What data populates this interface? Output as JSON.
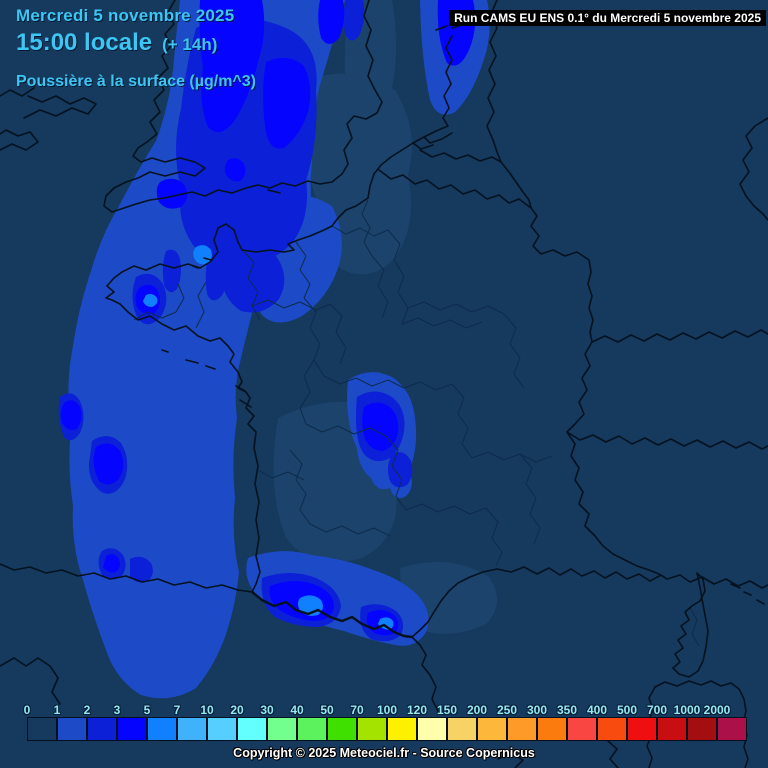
{
  "title": {
    "date": "Mercredi 5 novembre 2025",
    "time": "15:00 locale",
    "utc_offset": "(+ 14h)",
    "parameter": "Poussière à la surface (µg/m^3)",
    "text_color": "#3CC6F4"
  },
  "run_banner": {
    "text": "Run CAMS EU ENS 0.1° du Mercredi 5 novembre 2025",
    "background": "#000000",
    "text_color": "#FFFFFF"
  },
  "colorbar": {
    "unit": "µg/m^3",
    "tick_labels": [
      "0",
      "1",
      "2",
      "3",
      "5",
      "7",
      "10",
      "20",
      "30",
      "40",
      "50",
      "70",
      "100",
      "120",
      "150",
      "200",
      "250",
      "300",
      "350",
      "400",
      "500",
      "700",
      "1000",
      "2000"
    ],
    "cell_colors": [
      "#16395E",
      "#1D4BC7",
      "#0C20D8",
      "#0505FF",
      "#1080FF",
      "#3FB2FB",
      "#55CFFF",
      "#63FFFF",
      "#73FF8E",
      "#5BF25E",
      "#3FE000",
      "#A4E300",
      "#FDF100",
      "#FFFFAC",
      "#F7D365",
      "#FDB73A",
      "#FD9A28",
      "#FB7B0F",
      "#F94643",
      "#F74B10",
      "#EF0E10",
      "#C80E10",
      "#A40E10",
      "#AC1048"
    ],
    "tick_color": "#97E8EC"
  },
  "footer": {
    "copyright": "Copyright © 2025 Meteociel.fr - Source Copernicus"
  },
  "map": {
    "background": "#16395E",
    "coast_border_color": "#041220",
    "department_line_color": "#0D2B4B",
    "dust_level_colors": {
      "trace": "#1B436C",
      "level_1_2": "#1D4BC7",
      "level_2_3": "#0C20D8",
      "level_3_5": "#0505FF",
      "level_5_7": "#1080FF"
    }
  }
}
